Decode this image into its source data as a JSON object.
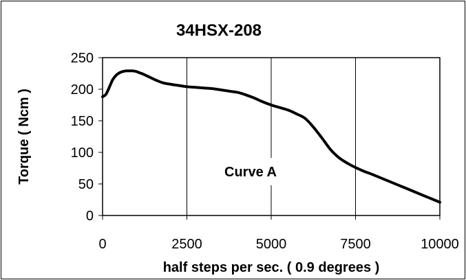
{
  "chart_data": {
    "type": "line",
    "title": "34HSX-208",
    "xlabel": "half steps per sec. ( 0.9 degrees )",
    "ylabel": "Torque ( Ncm )",
    "xlim": [
      0,
      10000
    ],
    "ylim": [
      0,
      250
    ],
    "x_ticks": [
      "0",
      "2500",
      "5000",
      "7500",
      "10000"
    ],
    "y_ticks": [
      "0",
      "50",
      "100",
      "150",
      "200",
      "250"
    ],
    "grid": "vertical",
    "annotation": "Curve A",
    "colors": {
      "line": "#000000",
      "grid": "#000000",
      "background": "#ffffff"
    },
    "series": [
      {
        "x": [
          0,
          100,
          200,
          300,
          400,
          500,
          600,
          700,
          800,
          900,
          1000,
          1100,
          1200,
          1400,
          1600,
          1800,
          2000,
          2250,
          2500,
          2750,
          3000,
          3250,
          3500,
          3750,
          4000,
          4250,
          4500,
          4750,
          5000,
          5250,
          5500,
          5750,
          6000,
          6250,
          6500,
          6750,
          7000,
          7250,
          7500,
          7750,
          8000,
          8500,
          9000,
          9500,
          10000
        ],
        "y": [
          188,
          192,
          203,
          215,
          222,
          226,
          228,
          229,
          229,
          229,
          228,
          226,
          224,
          219,
          214,
          210,
          208,
          206,
          204,
          203,
          202,
          201,
          199,
          197,
          195,
          191,
          186,
          180,
          175,
          171,
          167,
          161,
          154,
          140,
          123,
          105,
          92,
          83,
          76,
          70,
          65,
          54,
          43,
          32,
          21
        ]
      }
    ]
  }
}
